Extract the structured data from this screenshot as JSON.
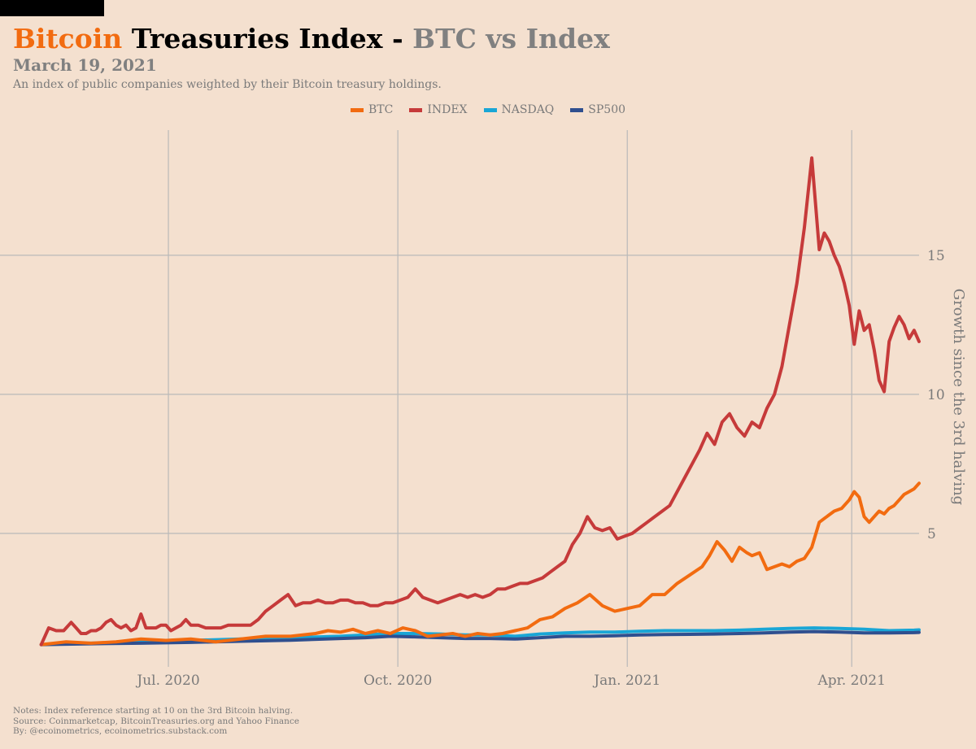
{
  "header": {
    "title_btc": "Bitcoin",
    "title_main": "Treasuries Index",
    "title_sep": "-",
    "title_vs": "BTC vs Index",
    "date": "March 19, 2021",
    "subtitle": "An index of public companies weighted by their Bitcoin treasury holdings."
  },
  "notes": {
    "line1": "Notes: Index reference starting at 10 on the 3rd Bitcoin halving.",
    "line2": "Source: Coinmarketcap, BitcoinTreasuries.org and Yahoo Finance",
    "line3": "By: @ecoinometrics, ecoinometrics.substack.com"
  },
  "chart_data": {
    "type": "line",
    "title": "Bitcoin Treasuries Index - BTC vs Index",
    "xlabel": "",
    "ylabel": "Growth since the 3rd halving",
    "x_ticks": [
      "Jul. 2020",
      "Oct. 2020",
      "Jan. 2021",
      "Apr. 2021"
    ],
    "y_ticks": [
      5,
      10,
      15
    ],
    "ylim": [
      0.2,
      19.5
    ],
    "xlim": [
      -10,
      352
    ],
    "x_unit": "days since 2020-05-11",
    "grid": true,
    "legend_position": "top-center",
    "series": [
      {
        "name": "BTC",
        "color": "#f26b10",
        "x": [
          0,
          10,
          20,
          30,
          40,
          50,
          60,
          70,
          80,
          90,
          100,
          110,
          115,
          120,
          125,
          130,
          135,
          140,
          145,
          150,
          155,
          160,
          165,
          170,
          175,
          180,
          185,
          190,
          195,
          200,
          205,
          210,
          215,
          220,
          225,
          230,
          235,
          240,
          245,
          250,
          255,
          260,
          265,
          268,
          271,
          274,
          277,
          280,
          283,
          285,
          288,
          291,
          294,
          297,
          300,
          303,
          306,
          309,
          312,
          315,
          318,
          321,
          324,
          326,
          328,
          330,
          332,
          334,
          336,
          338,
          340,
          342,
          344,
          346,
          348,
          350,
          352
        ],
        "values": [
          1.0,
          1.1,
          1.05,
          1.1,
          1.2,
          1.15,
          1.2,
          1.1,
          1.2,
          1.3,
          1.3,
          1.4,
          1.5,
          1.45,
          1.55,
          1.4,
          1.5,
          1.4,
          1.6,
          1.5,
          1.3,
          1.35,
          1.4,
          1.3,
          1.4,
          1.35,
          1.4,
          1.5,
          1.6,
          1.9,
          2.0,
          2.3,
          2.5,
          2.8,
          2.4,
          2.2,
          2.3,
          2.4,
          2.8,
          2.8,
          3.2,
          3.5,
          3.8,
          4.2,
          4.7,
          4.4,
          4.0,
          4.5,
          4.3,
          4.2,
          4.3,
          3.7,
          3.8,
          3.9,
          3.8,
          4.0,
          4.1,
          4.5,
          5.4,
          5.6,
          5.8,
          5.9,
          6.2,
          6.5,
          6.3,
          5.6,
          5.4,
          5.6,
          5.8,
          5.7,
          5.9,
          6.0,
          6.2,
          6.4,
          6.5,
          6.6,
          6.8
        ]
      },
      {
        "name": "INDEX",
        "color": "#c63a3a",
        "x": [
          0,
          3,
          6,
          9,
          12,
          14,
          16,
          18,
          20,
          22,
          24,
          26,
          28,
          30,
          32,
          34,
          36,
          38,
          40,
          42,
          44,
          46,
          48,
          50,
          52,
          54,
          56,
          58,
          60,
          63,
          66,
          69,
          72,
          75,
          78,
          81,
          84,
          87,
          90,
          93,
          96,
          99,
          102,
          105,
          108,
          111,
          114,
          117,
          120,
          123,
          126,
          129,
          132,
          135,
          138,
          141,
          144,
          147,
          150,
          153,
          156,
          159,
          162,
          165,
          168,
          171,
          174,
          177,
          180,
          183,
          186,
          189,
          192,
          195,
          198,
          201,
          204,
          207,
          210,
          213,
          216,
          219,
          222,
          225,
          228,
          231,
          234,
          237,
          240,
          243,
          246,
          249,
          252,
          255,
          258,
          261,
          264,
          267,
          270,
          273,
          276,
          279,
          282,
          285,
          288,
          291,
          294,
          297,
          300,
          303,
          306,
          309,
          312,
          314,
          316,
          318,
          320,
          322,
          324,
          326,
          328,
          330,
          332,
          334,
          336,
          338,
          340,
          342,
          344,
          346,
          348,
          350,
          352
        ],
        "values": [
          1.0,
          1.6,
          1.5,
          1.5,
          1.8,
          1.6,
          1.4,
          1.4,
          1.5,
          1.5,
          1.6,
          1.8,
          1.9,
          1.7,
          1.6,
          1.7,
          1.5,
          1.6,
          2.1,
          1.6,
          1.6,
          1.6,
          1.7,
          1.7,
          1.5,
          1.6,
          1.7,
          1.9,
          1.7,
          1.7,
          1.6,
          1.6,
          1.6,
          1.7,
          1.7,
          1.7,
          1.7,
          1.9,
          2.2,
          2.4,
          2.6,
          2.8,
          2.4,
          2.5,
          2.5,
          2.6,
          2.5,
          2.5,
          2.6,
          2.6,
          2.5,
          2.5,
          2.4,
          2.4,
          2.5,
          2.5,
          2.6,
          2.7,
          3.0,
          2.7,
          2.6,
          2.5,
          2.6,
          2.7,
          2.8,
          2.7,
          2.8,
          2.7,
          2.8,
          3.0,
          3.0,
          3.1,
          3.2,
          3.2,
          3.3,
          3.4,
          3.6,
          3.8,
          4.0,
          4.6,
          5.0,
          5.6,
          5.2,
          5.1,
          5.2,
          4.8,
          4.9,
          5.0,
          5.2,
          5.4,
          5.6,
          5.8,
          6.0,
          6.5,
          7.0,
          7.5,
          8.0,
          8.6,
          8.2,
          9.0,
          9.3,
          8.8,
          8.5,
          9.0,
          8.8,
          9.5,
          10.0,
          11.0,
          12.5,
          14.0,
          16.0,
          18.5,
          15.2,
          15.8,
          15.5,
          15.0,
          14.6,
          14.0,
          13.2,
          11.8,
          13.0,
          12.3,
          12.5,
          11.6,
          10.5,
          10.1,
          11.9,
          12.4,
          12.8,
          12.5,
          12.0,
          12.3,
          11.9
        ]
      },
      {
        "name": "NASDAQ",
        "color": "#19a6d6",
        "x": [
          0,
          20,
          40,
          60,
          80,
          100,
          120,
          130,
          140,
          150,
          160,
          170,
          180,
          190,
          200,
          210,
          220,
          230,
          240,
          250,
          260,
          270,
          280,
          290,
          300,
          310,
          320,
          330,
          340,
          350,
          352
        ],
        "values": [
          1.0,
          1.05,
          1.1,
          1.15,
          1.2,
          1.25,
          1.3,
          1.35,
          1.4,
          1.4,
          1.38,
          1.35,
          1.35,
          1.3,
          1.38,
          1.42,
          1.45,
          1.45,
          1.48,
          1.5,
          1.5,
          1.5,
          1.52,
          1.55,
          1.58,
          1.6,
          1.58,
          1.55,
          1.5,
          1.52,
          1.53
        ]
      },
      {
        "name": "SP500",
        "color": "#2f4f8f",
        "x": [
          0,
          20,
          40,
          60,
          80,
          100,
          120,
          130,
          140,
          150,
          160,
          170,
          180,
          190,
          200,
          210,
          220,
          230,
          240,
          250,
          260,
          270,
          280,
          290,
          300,
          310,
          320,
          330,
          340,
          350,
          352
        ],
        "values": [
          1.0,
          1.03,
          1.05,
          1.08,
          1.12,
          1.16,
          1.22,
          1.25,
          1.3,
          1.28,
          1.25,
          1.22,
          1.22,
          1.2,
          1.25,
          1.3,
          1.3,
          1.32,
          1.35,
          1.36,
          1.37,
          1.38,
          1.4,
          1.42,
          1.45,
          1.47,
          1.45,
          1.42,
          1.42,
          1.43,
          1.44
        ]
      }
    ]
  }
}
